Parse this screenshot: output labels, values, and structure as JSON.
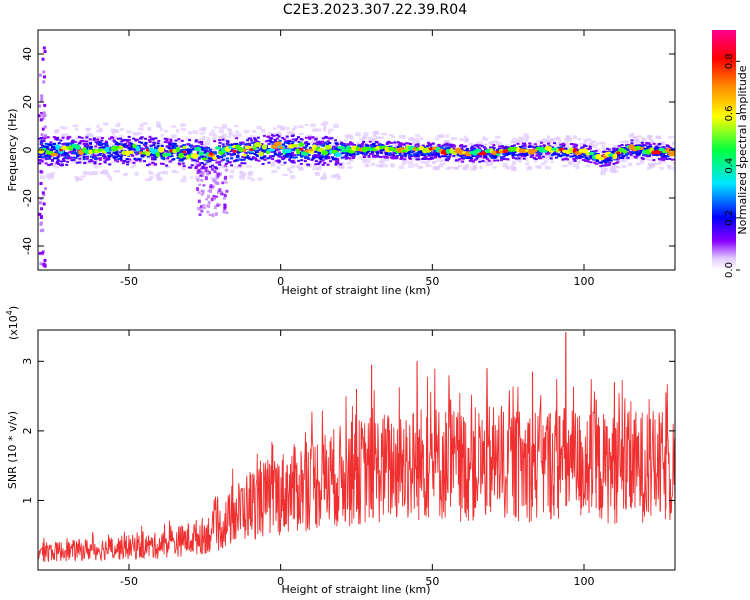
{
  "title": "C2E3.2023.307.22.39.R04",
  "chart_data": [
    {
      "type": "heatmap",
      "xlabel": "Height of straight line (km)",
      "ylabel": "Frequency (Hz)",
      "xlim": [
        -80,
        130
      ],
      "ylim": [
        -50,
        50
      ],
      "xticks": [
        -50,
        0,
        50,
        100
      ],
      "yticks": [
        -40,
        -20,
        0,
        20,
        40
      ],
      "colorbar": {
        "label": "Normalized spectral amplitude",
        "range": [
          0,
          0.92
        ],
        "ticks": [
          "0.0",
          "0.2",
          "0.4",
          "0.6",
          "0.8"
        ],
        "colormap": "rainbow (white-violet-blue-cyan-green-yellow-red-magenta)"
      },
      "ridge_x": [
        -80,
        -70,
        -60,
        -50,
        -40,
        -30,
        -25,
        -20,
        -10,
        0,
        10,
        20,
        30,
        40,
        50,
        60,
        70,
        80,
        90,
        100,
        105,
        110,
        115,
        120,
        130
      ],
      "ridge_y": [
        0,
        0,
        0,
        0,
        0,
        -1,
        -2,
        -1,
        0,
        1,
        0,
        0,
        1,
        0,
        0,
        -1,
        -1,
        0,
        0,
        -1,
        -3,
        -2,
        1,
        0,
        -1
      ],
      "lightning_bright": [
        100,
        102,
        99
      ],
      "lightning_bg": "#ffffff"
    },
    {
      "type": "line",
      "xlabel": "Height of straight line (km)",
      "ylabel": "SNR (10 * v/v)",
      "ylabel_multiplier": "(x10",
      "ylabel_multiplier_exp": "4",
      "ylabel_multiplier_close": ")",
      "xlim": [
        -80,
        130
      ],
      "ylim": [
        0,
        3.45
      ],
      "xticks": [
        -50,
        0,
        50,
        100
      ],
      "yticks": [
        1,
        2,
        3
      ],
      "series_color": "#f03030",
      "envelope_x": [
        -80,
        -60,
        -40,
        -30,
        -25,
        -20,
        -15,
        -10,
        0,
        10,
        20,
        30,
        40,
        50,
        60,
        70,
        80,
        90,
        100,
        110,
        120,
        130
      ],
      "envelope_y": [
        0.25,
        0.3,
        0.35,
        0.45,
        0.5,
        0.6,
        0.8,
        0.95,
        1.1,
        1.25,
        1.35,
        1.45,
        1.5,
        1.55,
        1.5,
        1.55,
        1.5,
        1.55,
        1.5,
        1.45,
        1.5,
        1.45
      ],
      "peaks": [
        {
          "x": 94,
          "y": 3.42
        },
        {
          "x": 45,
          "y": 3.0
        },
        {
          "x": 30,
          "y": 2.95
        },
        {
          "x": 68,
          "y": 2.9
        },
        {
          "x": 83,
          "y": 2.85
        },
        {
          "x": 110,
          "y": 2.7
        },
        {
          "x": 127,
          "y": 2.55
        },
        {
          "x": 25,
          "y": 2.6
        },
        {
          "x": 56,
          "y": 2.45
        },
        {
          "x": 104,
          "y": 2.45
        }
      ]
    }
  ]
}
